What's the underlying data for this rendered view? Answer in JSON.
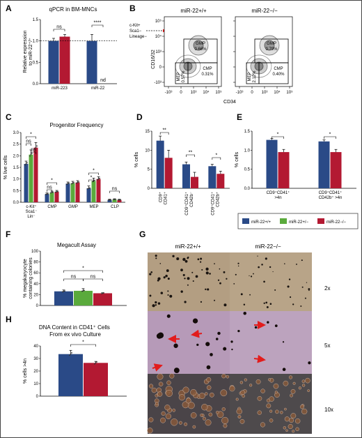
{
  "colors": {
    "wt": "#2a4a87",
    "het": "#5aaa3c",
    "ko": "#b31932",
    "dot": "#555555",
    "red_arrow": "#e21c1c"
  },
  "panel_letters": [
    "A",
    "B",
    "C",
    "D",
    "E",
    "F",
    "G",
    "H"
  ],
  "panelA": {
    "chart_data": {
      "type": "bar",
      "title": "qPCR in BM-MNCs",
      "ylabel": "Relative expression to miR-22+/+",
      "categories": [
        "miR-223",
        "miR-22"
      ],
      "series": [
        {
          "values": [
            1.0,
            1.0
          ],
          "err": [
            0.06,
            0.15
          ]
        },
        {
          "values": [
            1.1,
            null
          ],
          "err": [
            0.05,
            0
          ]
        }
      ],
      "ylim": [
        0,
        1.5
      ],
      "yticks": [
        "0.0",
        "0.5",
        "1.0",
        "1.5"
      ],
      "annotations": [
        "ns",
        "****",
        "nd"
      ]
    }
  },
  "panelB": {
    "titles": [
      "miR-22+/+",
      "miR-22−/−"
    ],
    "gate_label": [
      "c-Kit+",
      "Sca1−",
      "Lineage−"
    ],
    "ylabel": "CD16/32",
    "xlabel": "CD34",
    "ticks": [
      "-10³",
      "0",
      "10³",
      "10⁴",
      "10⁵"
    ],
    "plot1": {
      "gmp": "GMP",
      "gmp_v": "0.66%",
      "mep": "MEP",
      "mep_v": "0.57%",
      "cmp": "CMP",
      "cmp_v": "0.31%"
    },
    "plot2": {
      "gmp": "GMP",
      "gmp_v": "0.79%",
      "mep": "MEP",
      "mep_v": "2.12%",
      "cmp": "CMP",
      "cmp_v": "0.40%"
    }
  },
  "panelC": {
    "chart_data": {
      "type": "bar",
      "title": "Progenitor Frequency",
      "ylabel": "% live cells",
      "categories": [
        "c-Kit+ Sca1− Lin−",
        "CMP",
        "GMP",
        "MEP",
        "CLP"
      ],
      "series": [
        {
          "values": [
            1.65,
            0.35,
            0.8,
            0.6,
            0.1
          ],
          "err": [
            0.12,
            0.05,
            0.07,
            0.1,
            0.03
          ]
        },
        {
          "values": [
            2.05,
            0.42,
            0.82,
            0.92,
            0.12
          ],
          "err": [
            0.2,
            0.06,
            0.08,
            0.12,
            0.03
          ]
        },
        {
          "values": [
            2.35,
            0.45,
            0.85,
            1.0,
            0.1
          ],
          "err": [
            0.22,
            0.06,
            0.08,
            0.1,
            0.03
          ]
        }
      ],
      "ylim": [
        0,
        3
      ],
      "yticks": [
        "0.0",
        "0.5",
        "1.0",
        "1.5",
        "2.0",
        "2.5",
        "3.0"
      ]
    }
  },
  "panelD": {
    "chart_data": {
      "type": "bar",
      "ylabel": "% cells",
      "categories": [
        "CD9+ CD41+",
        "CD9+CD41+ CD42b−",
        "CD9+CD41+ CD42b+"
      ],
      "series": [
        {
          "values": [
            12.5,
            6.3,
            5.8
          ],
          "err": [
            1.2,
            0.6,
            0.5
          ]
        },
        {
          "values": [
            8.0,
            3.0,
            3.8
          ],
          "err": [
            2.0,
            1.2,
            0.7
          ]
        }
      ],
      "ylim": [
        0,
        15
      ],
      "yticks": [
        "0",
        "5",
        "10",
        "15"
      ],
      "annotations": [
        "**",
        "**",
        "*"
      ]
    }
  },
  "panelE": {
    "chart_data": {
      "type": "bar",
      "ylabel": "% cells",
      "categories": [
        "CD9+CD41+ >4n",
        "CD9+CD41+ CD42b+ >4n"
      ],
      "series": [
        {
          "values": [
            1.27,
            1.23
          ],
          "err": [
            0.04,
            0.04
          ]
        },
        {
          "values": [
            0.95,
            0.95
          ],
          "err": [
            0.07,
            0.07
          ]
        }
      ],
      "ylim": [
        0,
        1.5
      ],
      "yticks": [
        "0.0",
        "0.5",
        "1.0",
        "1.5"
      ],
      "annotations": [
        "*",
        "*"
      ]
    }
  },
  "legend": [
    "miR-22+/+",
    "miR-22+/−",
    "miR-22−/−"
  ],
  "panelF": {
    "chart_data": {
      "type": "bar",
      "title": "Megacult Assay",
      "ylabel": "% megakaryocyte containing colonies",
      "series": [
        {
          "values": [
            26
          ],
          "err": [
            2.5
          ]
        },
        {
          "values": [
            27
          ],
          "err": [
            4
          ]
        },
        {
          "values": [
            22.5
          ],
          "err": [
            1
          ]
        }
      ],
      "ylim": [
        0,
        100
      ],
      "yticks": [
        "0",
        "20",
        "40",
        "60",
        "80",
        "100"
      ],
      "annotations": [
        "ns",
        "ns",
        "*"
      ]
    }
  },
  "panelG": {
    "titles": [
      "miR-22+/+",
      "miR-22−/−"
    ],
    "magnifications": [
      "2x",
      "5x",
      "10x"
    ]
  },
  "panelH": {
    "chart_data": {
      "type": "bar",
      "title": "DNA Content in CD41+ Cells From ex vivo Culture",
      "ylabel": "% cells >4n",
      "series": [
        {
          "values": [
            33.5
          ],
          "err": [
            3
          ]
        },
        {
          "values": [
            26.5
          ],
          "err": [
            1.2
          ]
        }
      ],
      "ylim": [
        0,
        40
      ],
      "yticks": [
        "0",
        "10",
        "20",
        "30",
        "40"
      ],
      "annotations": [
        "*"
      ]
    }
  }
}
